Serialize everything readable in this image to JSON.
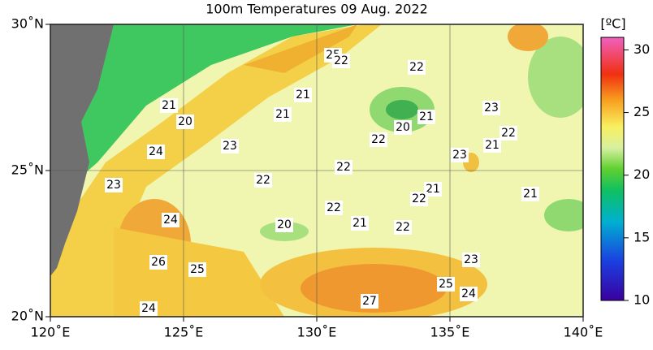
{
  "title": "100m Temperatures  09 Aug. 2022",
  "map": {
    "xlim": [
      120,
      140
    ],
    "ylim": [
      20,
      30
    ],
    "xticks": [
      {
        "value": 120,
        "label": "120˚E"
      },
      {
        "value": 125,
        "label": "125˚E"
      },
      {
        "value": 130,
        "label": "130˚E"
      },
      {
        "value": 135,
        "label": "135˚E"
      },
      {
        "value": 140,
        "label": "140˚E"
      }
    ],
    "yticks": [
      {
        "value": 20,
        "label": "20˚N"
      },
      {
        "value": 25,
        "label": "25˚N"
      },
      {
        "value": 30,
        "label": "30˚N"
      }
    ],
    "grid": true
  },
  "colorbar": {
    "unit": "[ºC]",
    "range": [
      10,
      31
    ],
    "ticks": [
      10,
      15,
      20,
      25,
      30
    ]
  },
  "contour_labels": [
    25,
    22,
    22,
    21,
    21,
    21,
    20,
    23,
    21,
    20,
    22,
    22,
    23,
    21,
    24,
    23,
    22,
    22,
    23,
    21,
    22,
    21,
    22,
    24,
    21,
    22,
    20,
    23,
    26,
    25,
    25,
    24,
    27,
    24
  ]
}
